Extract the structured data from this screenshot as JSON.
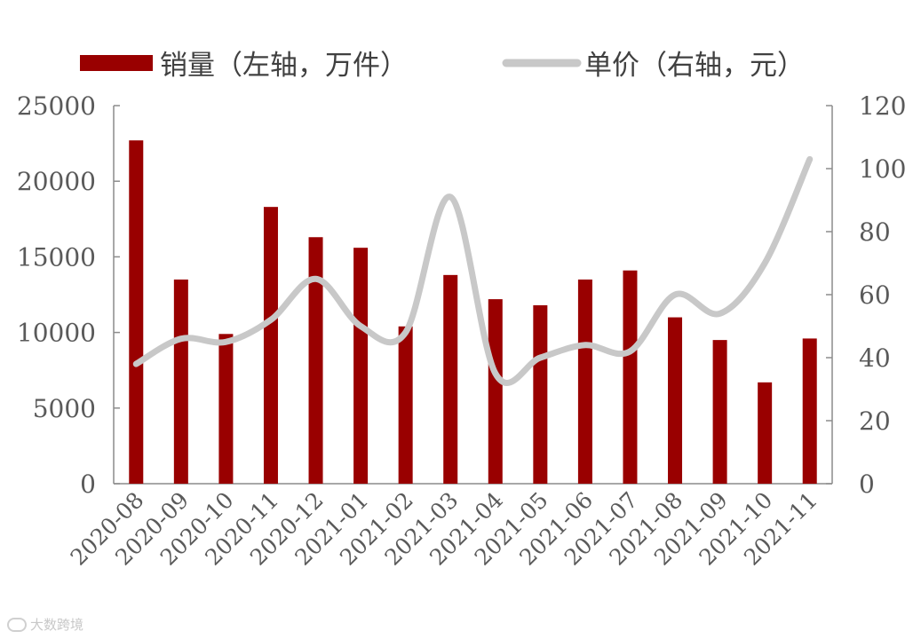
{
  "chart_data": {
    "type": "bar",
    "categories": [
      "2020-08",
      "2020-09",
      "2020-10",
      "2020-11",
      "2020-12",
      "2021-01",
      "2021-02",
      "2021-03",
      "2021-04",
      "2021-05",
      "2021-06",
      "2021-07",
      "2021-08",
      "2021-09",
      "2021-10",
      "2021-11"
    ],
    "series": [
      {
        "name": "销量（左轴，万件）",
        "type": "bar",
        "axis": "left",
        "color": "#990000",
        "values": [
          22700,
          13500,
          9900,
          18300,
          16300,
          15600,
          10400,
          13800,
          12200,
          11800,
          13500,
          14100,
          11000,
          9500,
          6700,
          9600
        ]
      },
      {
        "name": "单价（右轴，元）",
        "type": "line",
        "axis": "right",
        "color": "#c8c8c8",
        "smooth": true,
        "values": [
          38,
          46,
          45,
          52,
          65,
          50,
          48,
          91,
          35,
          40,
          44,
          42,
          60,
          54,
          70,
          103
        ]
      }
    ],
    "y_left": {
      "range": [
        0,
        25000
      ],
      "ticks": [
        0,
        5000,
        10000,
        15000,
        20000,
        25000
      ]
    },
    "y_right": {
      "range": [
        0,
        120
      ],
      "ticks": [
        0,
        20,
        40,
        60,
        80,
        100,
        120
      ]
    },
    "legend_position": "top",
    "grid": false
  },
  "watermark": {
    "text": "大数跨境"
  }
}
